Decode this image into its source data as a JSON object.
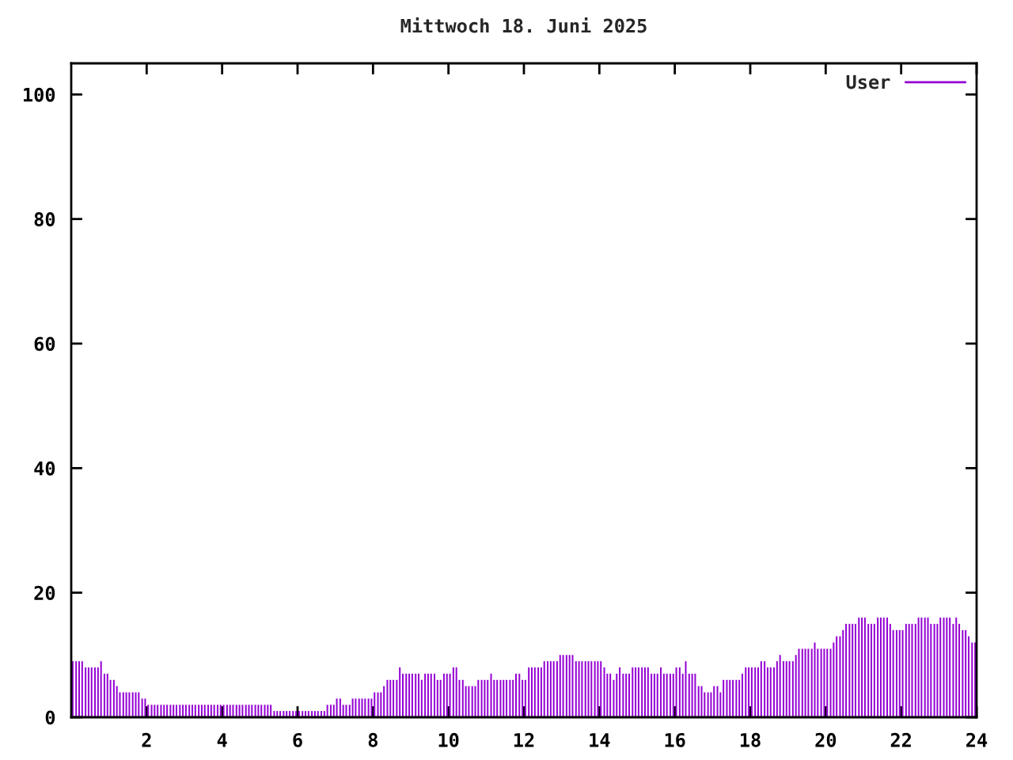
{
  "chart_data": {
    "type": "bar",
    "title": "Mittwoch 18. Juni 2025",
    "x": [
      0.04,
      0.13,
      0.21,
      0.29,
      0.38,
      0.46,
      0.54,
      0.63,
      0.71,
      0.79,
      0.88,
      0.96,
      1.04,
      1.13,
      1.21,
      1.29,
      1.38,
      1.46,
      1.54,
      1.63,
      1.71,
      1.79,
      1.88,
      1.96,
      2.04,
      2.13,
      2.21,
      2.29,
      2.38,
      2.46,
      2.54,
      2.63,
      2.71,
      2.79,
      2.88,
      2.96,
      3.04,
      3.13,
      3.21,
      3.29,
      3.38,
      3.46,
      3.54,
      3.63,
      3.71,
      3.79,
      3.88,
      3.96,
      4.04,
      4.13,
      4.21,
      4.29,
      4.38,
      4.46,
      4.54,
      4.63,
      4.71,
      4.79,
      4.88,
      4.96,
      5.04,
      5.13,
      5.21,
      5.29,
      5.38,
      5.46,
      5.54,
      5.63,
      5.71,
      5.79,
      5.88,
      5.96,
      6.04,
      6.13,
      6.21,
      6.29,
      6.38,
      6.46,
      6.54,
      6.63,
      6.71,
      6.79,
      6.88,
      6.96,
      7.04,
      7.13,
      7.21,
      7.29,
      7.38,
      7.46,
      7.54,
      7.63,
      7.71,
      7.79,
      7.88,
      7.96,
      8.04,
      8.13,
      8.21,
      8.29,
      8.38,
      8.46,
      8.54,
      8.63,
      8.71,
      8.79,
      8.88,
      8.96,
      9.04,
      9.13,
      9.21,
      9.29,
      9.38,
      9.46,
      9.54,
      9.63,
      9.71,
      9.79,
      9.88,
      9.96,
      10.04,
      10.13,
      10.21,
      10.29,
      10.38,
      10.46,
      10.54,
      10.63,
      10.71,
      10.79,
      10.88,
      10.96,
      11.04,
      11.13,
      11.21,
      11.29,
      11.38,
      11.46,
      11.54,
      11.63,
      11.71,
      11.79,
      11.88,
      11.96,
      12.04,
      12.13,
      12.21,
      12.29,
      12.38,
      12.46,
      12.54,
      12.63,
      12.71,
      12.79,
      12.88,
      12.96,
      13.04,
      13.13,
      13.21,
      13.29,
      13.38,
      13.46,
      13.54,
      13.63,
      13.71,
      13.79,
      13.88,
      13.96,
      14.04,
      14.13,
      14.21,
      14.29,
      14.38,
      14.46,
      14.54,
      14.63,
      14.71,
      14.79,
      14.88,
      14.96,
      15.04,
      15.13,
      15.21,
      15.29,
      15.38,
      15.46,
      15.54,
      15.63,
      15.71,
      15.79,
      15.88,
      15.96,
      16.04,
      16.13,
      16.21,
      16.29,
      16.38,
      16.46,
      16.54,
      16.63,
      16.71,
      16.79,
      16.88,
      16.96,
      17.04,
      17.13,
      17.21,
      17.29,
      17.38,
      17.46,
      17.54,
      17.63,
      17.71,
      17.79,
      17.88,
      17.96,
      18.04,
      18.13,
      18.21,
      18.29,
      18.38,
      18.46,
      18.54,
      18.63,
      18.71,
      18.79,
      18.88,
      18.96,
      19.04,
      19.13,
      19.21,
      19.29,
      19.38,
      19.46,
      19.54,
      19.63,
      19.71,
      19.79,
      19.88,
      19.96,
      20.04,
      20.13,
      20.21,
      20.29,
      20.38,
      20.46,
      20.54,
      20.63,
      20.71,
      20.79,
      20.88,
      20.96,
      21.04,
      21.13,
      21.21,
      21.29,
      21.38,
      21.46,
      21.54,
      21.63,
      21.71,
      21.79,
      21.88,
      21.96,
      22.04,
      22.13,
      22.21,
      22.29,
      22.38,
      22.46,
      22.54,
      22.63,
      22.71,
      22.79,
      22.88,
      22.96,
      23.04,
      23.13,
      23.21,
      23.29,
      23.38,
      23.46,
      23.54,
      23.63,
      23.71,
      23.79,
      23.88,
      23.96
    ],
    "series": [
      {
        "name": "User",
        "color": "#9400d3",
        "values": [
          9,
          9,
          9,
          9,
          8,
          8,
          8,
          8,
          8,
          9,
          7,
          7,
          6,
          6,
          5,
          4,
          4,
          4,
          4,
          4,
          4,
          4,
          3,
          3,
          2,
          2,
          2,
          2,
          2,
          2,
          2,
          2,
          2,
          2,
          2,
          2,
          2,
          2,
          2,
          2,
          2,
          2,
          2,
          2,
          2,
          2,
          2,
          2,
          2,
          2,
          2,
          2,
          2,
          2,
          2,
          2,
          2,
          2,
          2,
          2,
          2,
          2,
          2,
          2,
          1,
          1,
          1,
          1,
          1,
          1,
          1,
          1,
          1,
          1,
          1,
          1,
          1,
          1,
          1,
          1,
          1,
          2,
          2,
          2,
          3,
          3,
          2,
          2,
          2,
          3,
          3,
          3,
          3,
          3,
          3,
          3,
          4,
          4,
          4,
          5,
          6,
          6,
          6,
          6,
          8,
          7,
          7,
          7,
          7,
          7,
          7,
          6,
          7,
          7,
          7,
          7,
          6,
          6,
          7,
          7,
          7,
          8,
          8,
          6,
          6,
          5,
          5,
          5,
          5,
          6,
          6,
          6,
          6,
          7,
          6,
          6,
          6,
          6,
          6,
          6,
          6,
          7,
          7,
          6,
          6,
          8,
          8,
          8,
          8,
          8,
          9,
          9,
          9,
          9,
          9,
          10,
          10,
          10,
          10,
          10,
          9,
          9,
          9,
          9,
          9,
          9,
          9,
          9,
          9,
          8,
          7,
          7,
          6,
          7,
          8,
          7,
          7,
          7,
          8,
          8,
          8,
          8,
          8,
          8,
          7,
          7,
          7,
          8,
          7,
          7,
          7,
          7,
          8,
          8,
          7,
          9,
          7,
          7,
          7,
          5,
          5,
          4,
          4,
          4,
          5,
          5,
          4,
          6,
          6,
          6,
          6,
          6,
          6,
          7,
          8,
          8,
          8,
          8,
          8,
          9,
          9,
          8,
          8,
          8,
          9,
          10,
          9,
          9,
          9,
          9,
          10,
          11,
          11,
          11,
          11,
          11,
          12,
          11,
          11,
          11,
          11,
          11,
          12,
          13,
          13,
          14,
          15,
          15,
          15,
          15,
          16,
          16,
          16,
          15,
          15,
          15,
          16,
          16,
          16,
          16,
          15,
          14,
          14,
          14,
          14,
          15,
          15,
          15,
          15,
          16,
          16,
          16,
          16,
          15,
          15,
          15,
          16,
          16,
          16,
          16,
          15,
          16,
          15,
          14,
          14,
          13,
          12,
          12
        ]
      }
    ],
    "xlim": [
      0,
      24
    ],
    "xticks": [
      2,
      4,
      6,
      8,
      10,
      12,
      14,
      16,
      18,
      20,
      22,
      24
    ],
    "ylim": [
      0,
      105
    ],
    "yticks": [
      0,
      20,
      40,
      60,
      80,
      100
    ],
    "legend": "top right"
  }
}
